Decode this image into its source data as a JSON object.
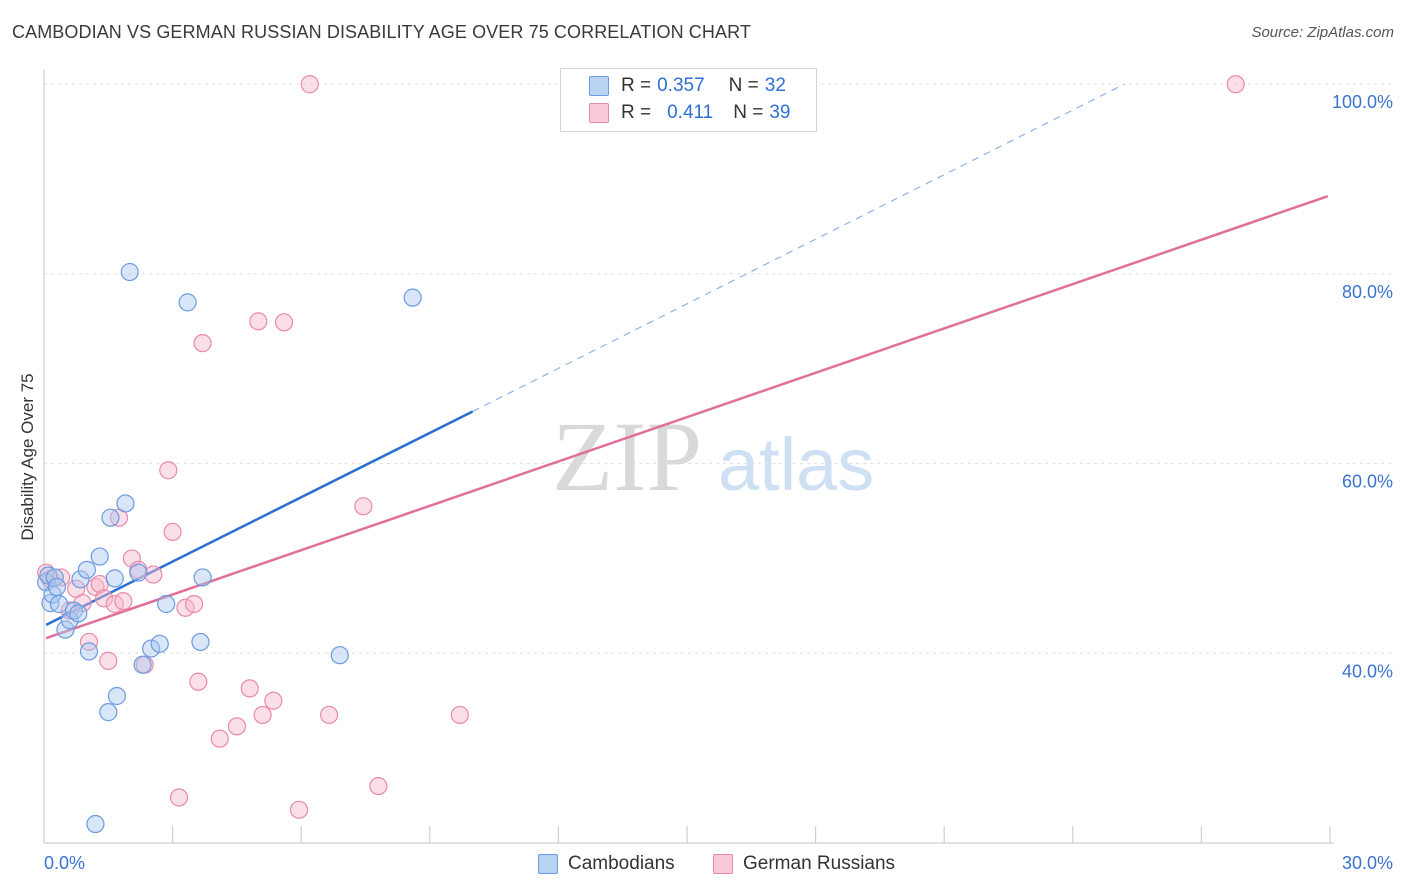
{
  "header": {
    "title": "CAMBODIAN VS GERMAN RUSSIAN DISABILITY AGE OVER 75 CORRELATION CHART",
    "source": "Source: ZipAtlas.com"
  },
  "watermark": {
    "zip": "ZIP",
    "atlas": "atlas"
  },
  "legend": {
    "rows": [
      {
        "r_label": "R =",
        "r_value": "0.357",
        "n_label": "N =",
        "n_value": "32"
      },
      {
        "r_label": "R =",
        "r_value": "0.411",
        "n_label": "N =",
        "n_value": "39"
      }
    ],
    "bottom": [
      "Cambodians",
      "German Russians"
    ]
  },
  "colors": {
    "blue_fill": "#a9c8f0",
    "blue_stroke": "#6b9be0",
    "blue_line": "#2870d1",
    "pink_fill": "#f6b8cb",
    "pink_stroke": "#e88aa8",
    "pink_line": "#e0709a",
    "axis_text": "#3a74d0"
  },
  "chart_data": {
    "type": "scatter",
    "title": "CAMBODIAN VS GERMAN RUSSIAN DISABILITY AGE OVER 75 CORRELATION CHART",
    "xlabel": "",
    "ylabel": "Disability Age Over 75",
    "xlim": [
      0,
      30
    ],
    "ylim": [
      20,
      101.5
    ],
    "x_tick_labels": [
      "0.0%",
      "30.0%"
    ],
    "y_tick_labels": [
      "40.0%",
      "60.0%",
      "80.0%",
      "100.0%"
    ],
    "y_ticks": [
      40,
      60,
      80,
      100
    ],
    "grid": true,
    "series": [
      {
        "name": "Cambodians",
        "r": 0.357,
        "n": 32,
        "points": [
          [
            0.05,
            47.5
          ],
          [
            0.1,
            48.2
          ],
          [
            0.15,
            45.3
          ],
          [
            0.2,
            46.2
          ],
          [
            0.25,
            48.0
          ],
          [
            0.3,
            47.0
          ],
          [
            0.35,
            45.2
          ],
          [
            0.5,
            42.5
          ],
          [
            0.6,
            43.5
          ],
          [
            0.7,
            44.5
          ],
          [
            0.8,
            44.2
          ],
          [
            0.85,
            47.8
          ],
          [
            1.0,
            48.8
          ],
          [
            1.05,
            40.2
          ],
          [
            1.3,
            50.2
          ],
          [
            1.5,
            33.8
          ],
          [
            1.55,
            54.3
          ],
          [
            1.65,
            47.9
          ],
          [
            1.7,
            35.5
          ],
          [
            1.9,
            55.8
          ],
          [
            2.2,
            48.5
          ],
          [
            2.3,
            38.8
          ],
          [
            2.5,
            40.5
          ],
          [
            2.7,
            41.0
          ],
          [
            2.85,
            45.2
          ],
          [
            3.35,
            77.0
          ],
          [
            3.65,
            41.2
          ],
          [
            3.7,
            48.0
          ],
          [
            6.9,
            39.8
          ],
          [
            8.6,
            77.5
          ],
          [
            1.2,
            22.0
          ],
          [
            2.0,
            80.2
          ]
        ]
      },
      {
        "name": "German Russians",
        "r": 0.411,
        "n": 39,
        "points": [
          [
            0.05,
            48.5
          ],
          [
            0.15,
            47.8
          ],
          [
            0.4,
            48.0
          ],
          [
            0.6,
            44.5
          ],
          [
            0.75,
            46.8
          ],
          [
            0.9,
            45.3
          ],
          [
            1.05,
            41.2
          ],
          [
            1.2,
            47.0
          ],
          [
            1.3,
            47.3
          ],
          [
            1.4,
            45.8
          ],
          [
            1.5,
            39.2
          ],
          [
            1.65,
            45.2
          ],
          [
            1.75,
            54.3
          ],
          [
            1.85,
            45.5
          ],
          [
            2.05,
            50.0
          ],
          [
            2.2,
            48.8
          ],
          [
            2.35,
            38.8
          ],
          [
            2.55,
            48.3
          ],
          [
            2.9,
            59.3
          ],
          [
            3.0,
            52.8
          ],
          [
            3.3,
            44.8
          ],
          [
            3.5,
            45.2
          ],
          [
            3.6,
            37.0
          ],
          [
            3.7,
            72.7
          ],
          [
            3.15,
            24.8
          ],
          [
            4.1,
            31.0
          ],
          [
            4.5,
            32.3
          ],
          [
            4.8,
            36.3
          ],
          [
            5.0,
            75.0
          ],
          [
            5.1,
            33.5
          ],
          [
            5.35,
            35.0
          ],
          [
            5.6,
            74.9
          ],
          [
            5.95,
            23.5
          ],
          [
            6.2,
            100.0
          ],
          [
            6.65,
            33.5
          ],
          [
            7.45,
            55.5
          ],
          [
            7.8,
            26.0
          ],
          [
            9.7,
            33.5
          ],
          [
            27.8,
            100.0
          ]
        ]
      }
    ],
    "trend_lines": [
      {
        "series": "Cambodians",
        "solid": [
          [
            0.05,
            43.0
          ],
          [
            10.0,
            65.5
          ]
        ],
        "dashed": [
          [
            10.0,
            65.5
          ],
          [
            25.2,
            100.0
          ]
        ]
      },
      {
        "series": "German Russians",
        "solid": [
          [
            0.05,
            41.6
          ],
          [
            29.95,
            88.2
          ]
        ]
      }
    ]
  }
}
